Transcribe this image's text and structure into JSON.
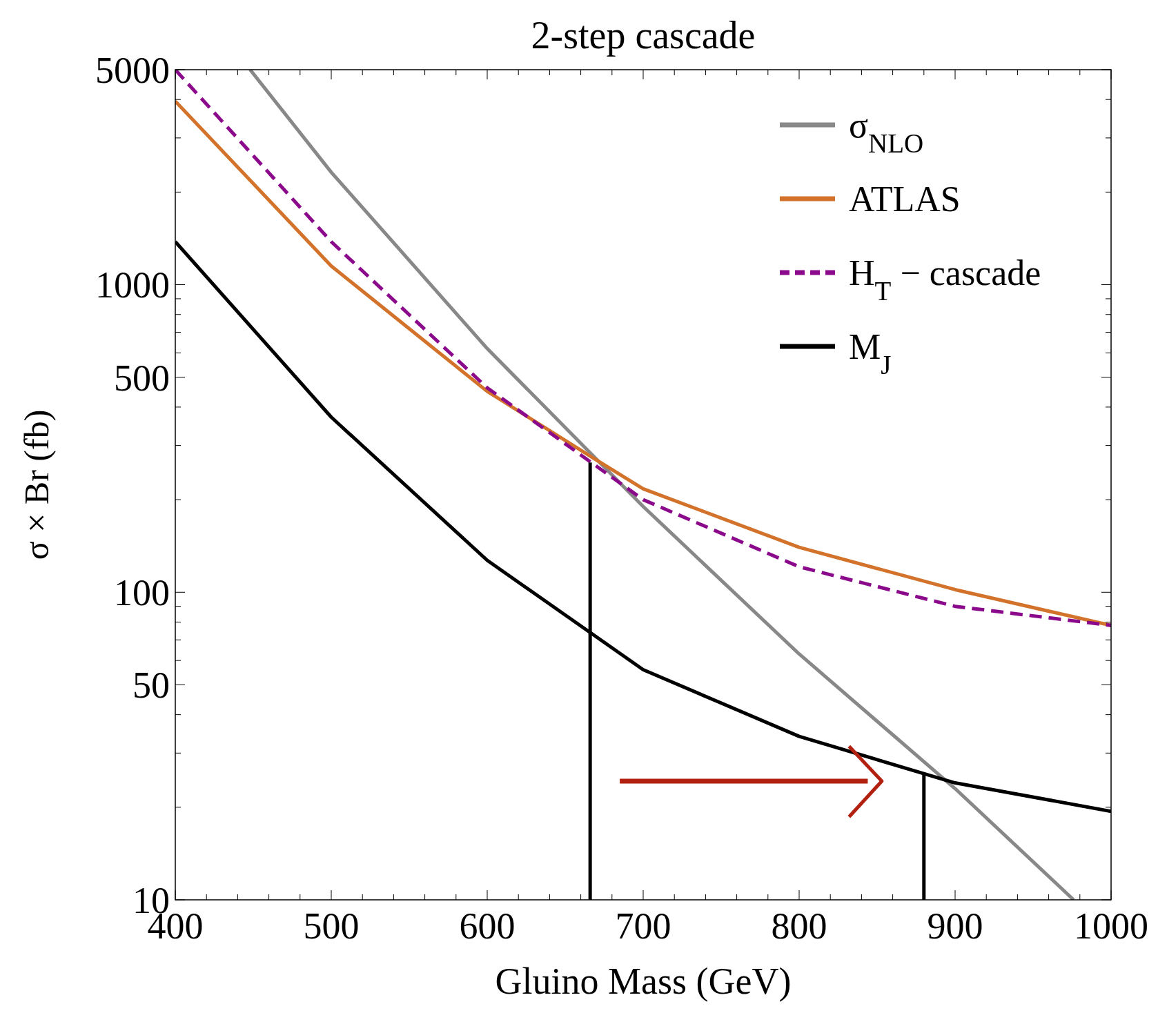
{
  "chart_data": {
    "type": "line",
    "title": "2-step cascade",
    "xlabel": "Gluino Mass (GeV)",
    "ylabel": "σ × Br (fb)",
    "log": "y",
    "grid": false,
    "legend": "top right",
    "marker": "none",
    "line_style": "solid",
    "xlim": [
      400,
      1000
    ],
    "ylim": [
      10,
      5000
    ],
    "xticks": [
      400,
      {
        "value": 420,
        "label": null
      },
      {
        "value": 440,
        "label": null
      },
      {
        "value": 460,
        "label": null
      },
      {
        "value": 480,
        "label": null
      },
      500,
      {
        "value": 520,
        "label": null
      },
      {
        "value": 540,
        "label": null
      },
      {
        "value": 560,
        "label": null
      },
      {
        "value": 580,
        "label": null
      },
      600,
      {
        "value": 620,
        "label": null
      },
      {
        "value": 640,
        "label": null
      },
      {
        "value": 660,
        "label": null
      },
      {
        "value": 680,
        "label": null
      },
      700,
      {
        "value": 720,
        "label": null
      },
      {
        "value": 740,
        "label": null
      },
      {
        "value": 760,
        "label": null
      },
      {
        "value": 780,
        "label": null
      },
      800,
      {
        "value": 820,
        "label": null
      },
      {
        "value": 840,
        "label": null
      },
      {
        "value": 860,
        "label": null
      },
      {
        "value": 880,
        "label": null
      },
      900,
      {
        "value": 920,
        "label": null
      },
      {
        "value": 940,
        "label": null
      },
      {
        "value": 960,
        "label": null
      },
      {
        "value": 980,
        "label": null
      },
      1000
    ],
    "yticks": [
      10,
      {
        "value": 20,
        "label": null
      },
      {
        "value": 30,
        "label": null
      },
      {
        "value": 40,
        "label": null
      },
      50,
      {
        "value": 60,
        "label": null
      },
      {
        "value": 70,
        "label": null
      },
      {
        "value": 80,
        "label": null
      },
      {
        "value": 90,
        "label": null
      },
      100,
      {
        "value": 200,
        "label": null
      },
      {
        "value": 300,
        "label": null
      },
      {
        "value": 400,
        "label": null
      },
      500,
      {
        "value": 600,
        "label": null
      },
      {
        "value": 700,
        "label": null
      },
      {
        "value": 800,
        "label": null
      },
      {
        "value": 900,
        "label": null
      },
      1000,
      {
        "value": 2000,
        "label": null
      },
      {
        "value": 3000,
        "label": null
      },
      {
        "value": 4000,
        "label": null
      },
      5000
    ],
    "series": [
      {
        "name": "σ$_{NLO}$",
        "color": "#888888",
        "x": [
          448,
          500,
          600,
          700,
          800,
          900,
          976
        ],
        "values": [
          5000,
          2320,
          620,
          190,
          63,
          23,
          10
        ]
      },
      {
        "name": "ATLAS",
        "color": "#d2722b",
        "x": [
          400,
          500,
          600,
          667,
          700,
          800,
          900,
          1000
        ],
        "values": [
          3950,
          1150,
          450,
          275,
          217,
          140,
          102,
          78
        ]
      },
      {
        "name": "H$_{T}$ − cascade",
        "color": "#8b0a8b",
        "line_style": "dashed",
        "x": [
          400,
          500,
          600,
          700,
          800,
          900,
          1000
        ],
        "values": [
          5000,
          1380,
          462,
          200,
          121,
          90,
          78
        ]
      },
      {
        "name": "M$_{J}$",
        "color": "#000000",
        "x": [
          400,
          500,
          600,
          700,
          800,
          900,
          1000
        ],
        "values": [
          1380,
          371,
          127,
          56,
          34,
          24,
          19.4
        ]
      },
      {
        "color": "#000000",
        "x": [
          666,
          666
        ],
        "values": [
          10,
          264
        ]
      },
      {
        "color": "#000000",
        "x": [
          880,
          880
        ],
        "values": [
          10,
          25.5
        ]
      }
    ]
  }
}
